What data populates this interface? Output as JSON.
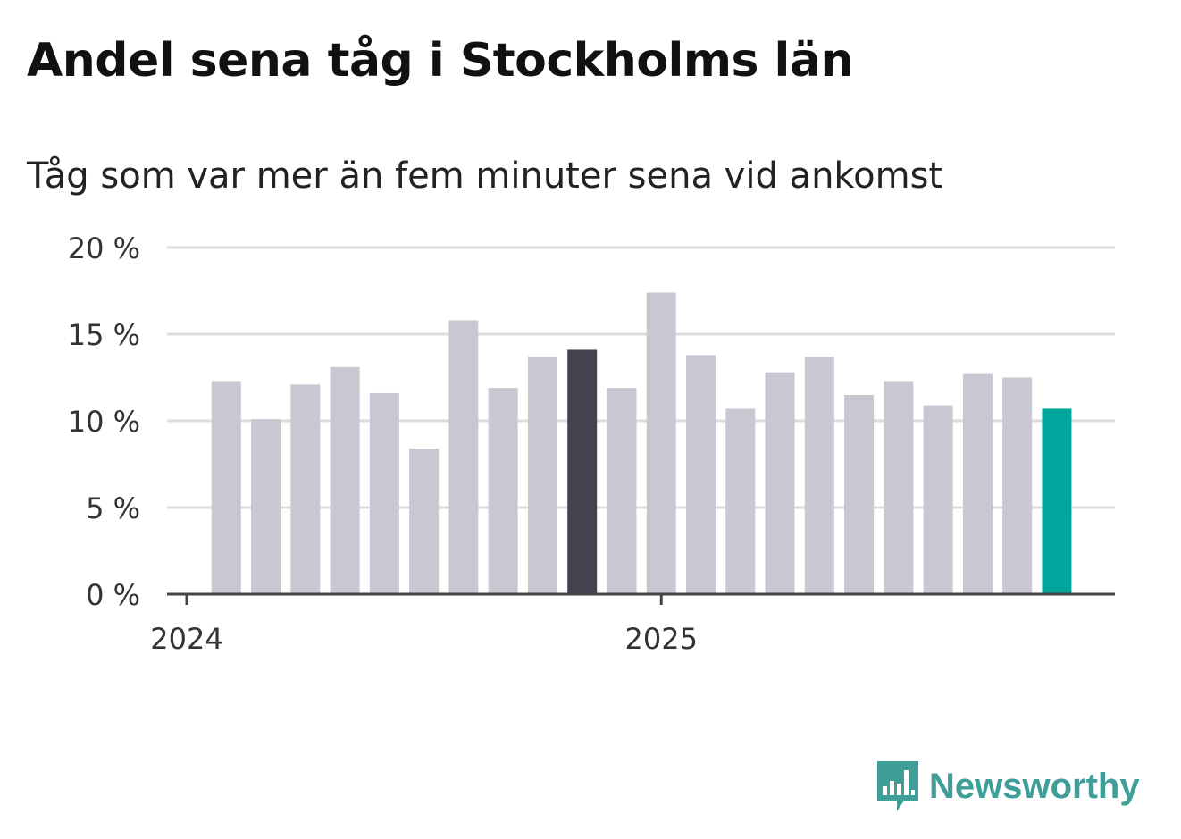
{
  "chart_data": {
    "type": "bar",
    "title": "Andel sena tåg i Stockholms län",
    "subtitle": "Tåg som var mer än fem minuter sena vid ankomst",
    "xlabel": "",
    "ylabel": "",
    "ylim": [
      0,
      20
    ],
    "yticks": [
      0,
      5,
      10,
      15,
      20
    ],
    "ytick_labels": [
      "0 %",
      "5 %",
      "10 %",
      "15 %",
      "20 %"
    ],
    "xtick_labels": [
      "2024",
      "2025"
    ],
    "grid": true,
    "categories": [
      "2024-02",
      "2024-03",
      "2024-04",
      "2024-05",
      "2024-06",
      "2024-07",
      "2024-08",
      "2024-09",
      "2024-10",
      "2024-11",
      "2024-12",
      "2025-01",
      "2025-02",
      "2025-03",
      "2025-04",
      "2025-05",
      "2025-06",
      "2025-07",
      "2025-08",
      "2025-09",
      "2025-10",
      "2025-11"
    ],
    "values": [
      12.3,
      10.1,
      12.1,
      13.1,
      11.6,
      8.4,
      15.8,
      11.9,
      13.7,
      14.1,
      11.9,
      17.4,
      13.8,
      10.7,
      12.8,
      13.7,
      11.5,
      12.3,
      10.9,
      12.7,
      12.5,
      10.7
    ],
    "highlight": {
      "2024-11": "#43424e",
      "2025-11": "#00a59c"
    },
    "bar_color": "#c8c7d2"
  },
  "logo": {
    "text": "Newsworthy",
    "color": "#3f9e97"
  }
}
